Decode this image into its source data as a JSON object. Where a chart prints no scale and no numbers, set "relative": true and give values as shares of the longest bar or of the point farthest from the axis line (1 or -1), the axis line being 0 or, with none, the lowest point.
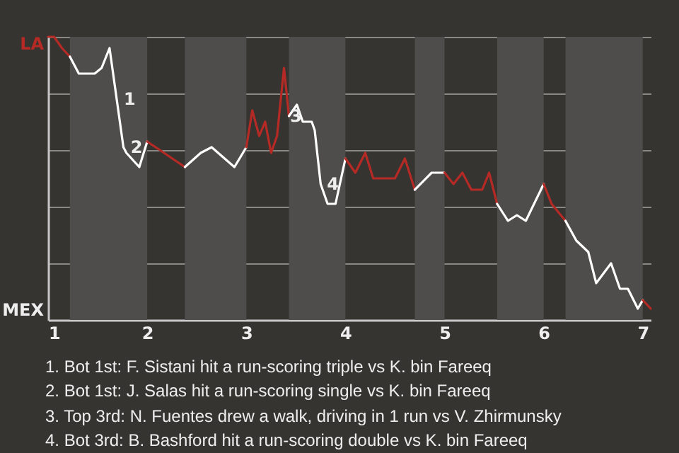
{
  "chart_data": {
    "type": "line",
    "relative": true,
    "xlim": [
      1,
      7.08
    ],
    "xticks": [
      1,
      2,
      3,
      4,
      5,
      6,
      7
    ],
    "grid": "y",
    "bands": [
      {
        "axis": "x",
        "from": 1.22,
        "to": 2,
        "color": "#4e4d4b"
      },
      {
        "axis": "x",
        "from": 2.38,
        "to": 3,
        "color": "#4e4d4b"
      },
      {
        "axis": "x",
        "from": 3.43,
        "to": 4,
        "color": "#4e4d4b"
      },
      {
        "axis": "x",
        "from": 4.7,
        "to": 5,
        "color": "#4e4d4b"
      },
      {
        "axis": "x",
        "from": 5.53,
        "to": 6,
        "color": "#4e4d4b"
      },
      {
        "axis": "x",
        "from": 6.22,
        "to": 7,
        "color": "#4e4d4b"
      }
    ],
    "series": [
      {
        "color": "#b52a25",
        "x": [
          1,
          1.06,
          1.14,
          1.22
        ],
        "values": [
          1,
          1,
          0.96,
          0.93
        ]
      },
      {
        "color": "#ffffff",
        "x": [
          1.22,
          1.31,
          1.47,
          1.54,
          1.62,
          1.76,
          1.79,
          1.92,
          2
        ],
        "values": [
          0.93,
          0.87,
          0.87,
          0.89,
          0.96,
          0.61,
          0.59,
          0.54,
          0.63
        ]
      },
      {
        "color": "#b52a25",
        "x": [
          2,
          2.17,
          2.38
        ],
        "values": [
          0.63,
          0.59,
          0.54
        ]
      },
      {
        "color": "#ffffff",
        "x": [
          2.38,
          2.54,
          2.65,
          2.88,
          3
        ],
        "values": [
          0.54,
          0.59,
          0.61,
          0.54,
          0.61
        ]
      },
      {
        "color": "#b52a25",
        "x": [
          3,
          3.06,
          3.13,
          3.19,
          3.25,
          3.31,
          3.38,
          3.43
        ],
        "values": [
          0.61,
          0.74,
          0.65,
          0.7,
          0.59,
          0.65,
          0.89,
          0.72
        ]
      },
      {
        "color": "#ffffff",
        "x": [
          3.43,
          3.51,
          3.57,
          3.66,
          3.69,
          3.75,
          3.82,
          3.9,
          4
        ],
        "values": [
          0.72,
          0.76,
          0.7,
          0.7,
          0.67,
          0.48,
          0.41,
          0.41,
          0.57
        ]
      },
      {
        "color": "#b52a25",
        "x": [
          4,
          4.1,
          4.2,
          4.28,
          4.5,
          4.6,
          4.7
        ],
        "values": [
          0.57,
          0.52,
          0.59,
          0.5,
          0.5,
          0.57,
          0.46
        ]
      },
      {
        "color": "#ffffff",
        "x": [
          4.7,
          4.87,
          5
        ],
        "values": [
          0.46,
          0.52,
          0.52
        ]
      },
      {
        "color": "#b52a25",
        "x": [
          5,
          5.09,
          5.18,
          5.27,
          5.38,
          5.45,
          5.53
        ],
        "values": [
          0.52,
          0.48,
          0.52,
          0.46,
          0.46,
          0.52,
          0.41
        ]
      },
      {
        "color": "#ffffff",
        "x": [
          5.53,
          5.64,
          5.73,
          5.82,
          6
        ],
        "values": [
          0.41,
          0.35,
          0.37,
          0.35,
          0.48
        ]
      },
      {
        "color": "#b52a25",
        "x": [
          6,
          6.08,
          6.22
        ],
        "values": [
          0.48,
          0.41,
          0.35
        ]
      },
      {
        "color": "#ffffff",
        "x": [
          6.22,
          6.33,
          6.45,
          6.53,
          6.68,
          6.77,
          6.85,
          6.95,
          7
        ],
        "values": [
          0.35,
          0.28,
          0.24,
          0.13,
          0.2,
          0.11,
          0.11,
          0.04,
          0.07
        ]
      },
      {
        "color": "#b52a25",
        "x": [
          7,
          7.08
        ],
        "values": [
          0.07,
          0.04
        ]
      }
    ],
    "annotations": [
      "LA",
      "MEX",
      {
        "text": "1",
        "x": 1.72,
        "y": 0.78
      },
      {
        "text": "2",
        "x": 1.79,
        "y": 0.61
      },
      {
        "text": "3",
        "x": 3.4,
        "y": 0.72
      },
      {
        "text": "4",
        "x": 3.77,
        "y": 0.48
      },
      "1. Bot 1st: F. Sistani hit a run-scoring triple vs K. bin Fareeq",
      "2. Bot 1st: J. Salas hit a run-scoring single vs K. bin Fareeq",
      "3. Top 3rd: N. Fuentes drew a walk, driving in 1 run vs V. Zhirmunsky",
      "4. Bot 3rd: B. Bashford hit a run-scoring double vs K. bin Fareeq"
    ]
  }
}
